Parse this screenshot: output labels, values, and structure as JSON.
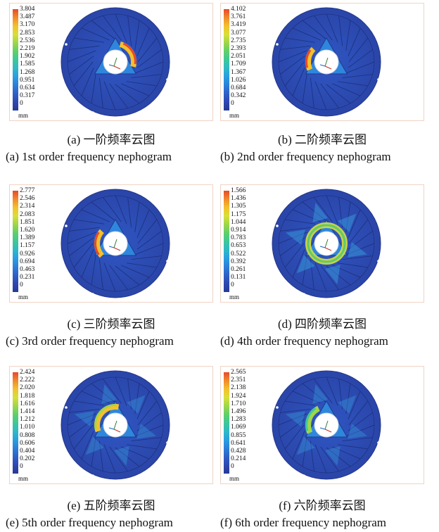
{
  "unit": "mm",
  "panels": [
    {
      "id": "a",
      "caption_cn": "(a) 一阶频率云图",
      "caption_en": "(a) 1st order frequency nephogram",
      "legend": [
        "3.804",
        "3.487",
        "3.170",
        "2.853",
        "2.536",
        "2.219",
        "1.902",
        "1.585",
        "1.268",
        "0.951",
        "0.634",
        "0.317",
        "0"
      ]
    },
    {
      "id": "b",
      "caption_cn": "(b) 二阶频率云图",
      "caption_en": "(b) 2nd order frequency nephogram",
      "legend": [
        "4.102",
        "3.761",
        "3.419",
        "3.077",
        "2.735",
        "2.393",
        "2.051",
        "1.709",
        "1.367",
        "1.026",
        "0.684",
        "0.342",
        "0"
      ]
    },
    {
      "id": "c",
      "caption_cn": "(c) 三阶频率云图",
      "caption_en": "(c) 3rd order frequency nephogram",
      "legend": [
        "2.777",
        "2.546",
        "2.314",
        "2.083",
        "1.851",
        "1.620",
        "1.389",
        "1.157",
        "0.926",
        "0.694",
        "0.463",
        "0.231",
        "0"
      ]
    },
    {
      "id": "d",
      "caption_cn": "(d) 四阶频率云图",
      "caption_en": "(d) 4th order frequency nephogram",
      "legend": [
        "1.566",
        "1.436",
        "1.305",
        "1.175",
        "1.044",
        "0.914",
        "0.783",
        "0.653",
        "0.522",
        "0.392",
        "0.261",
        "0.131",
        "0"
      ]
    },
    {
      "id": "e",
      "caption_cn": "(e) 五阶频率云图",
      "caption_en": "(e) 5th order frequency nephogram",
      "legend": [
        "2.424",
        "2.222",
        "2.020",
        "1.818",
        "1.616",
        "1.414",
        "1.212",
        "1.010",
        "0.808",
        "0.606",
        "0.404",
        "0.202",
        "0"
      ]
    },
    {
      "id": "f",
      "caption_cn": "(f) 六阶频率云图",
      "caption_en": "(f) 6th order frequency nephogram",
      "legend": [
        "2.565",
        "2.351",
        "2.138",
        "1.924",
        "1.710",
        "1.496",
        "1.283",
        "1.069",
        "0.855",
        "0.641",
        "0.428",
        "0.214",
        "0"
      ]
    }
  ]
}
